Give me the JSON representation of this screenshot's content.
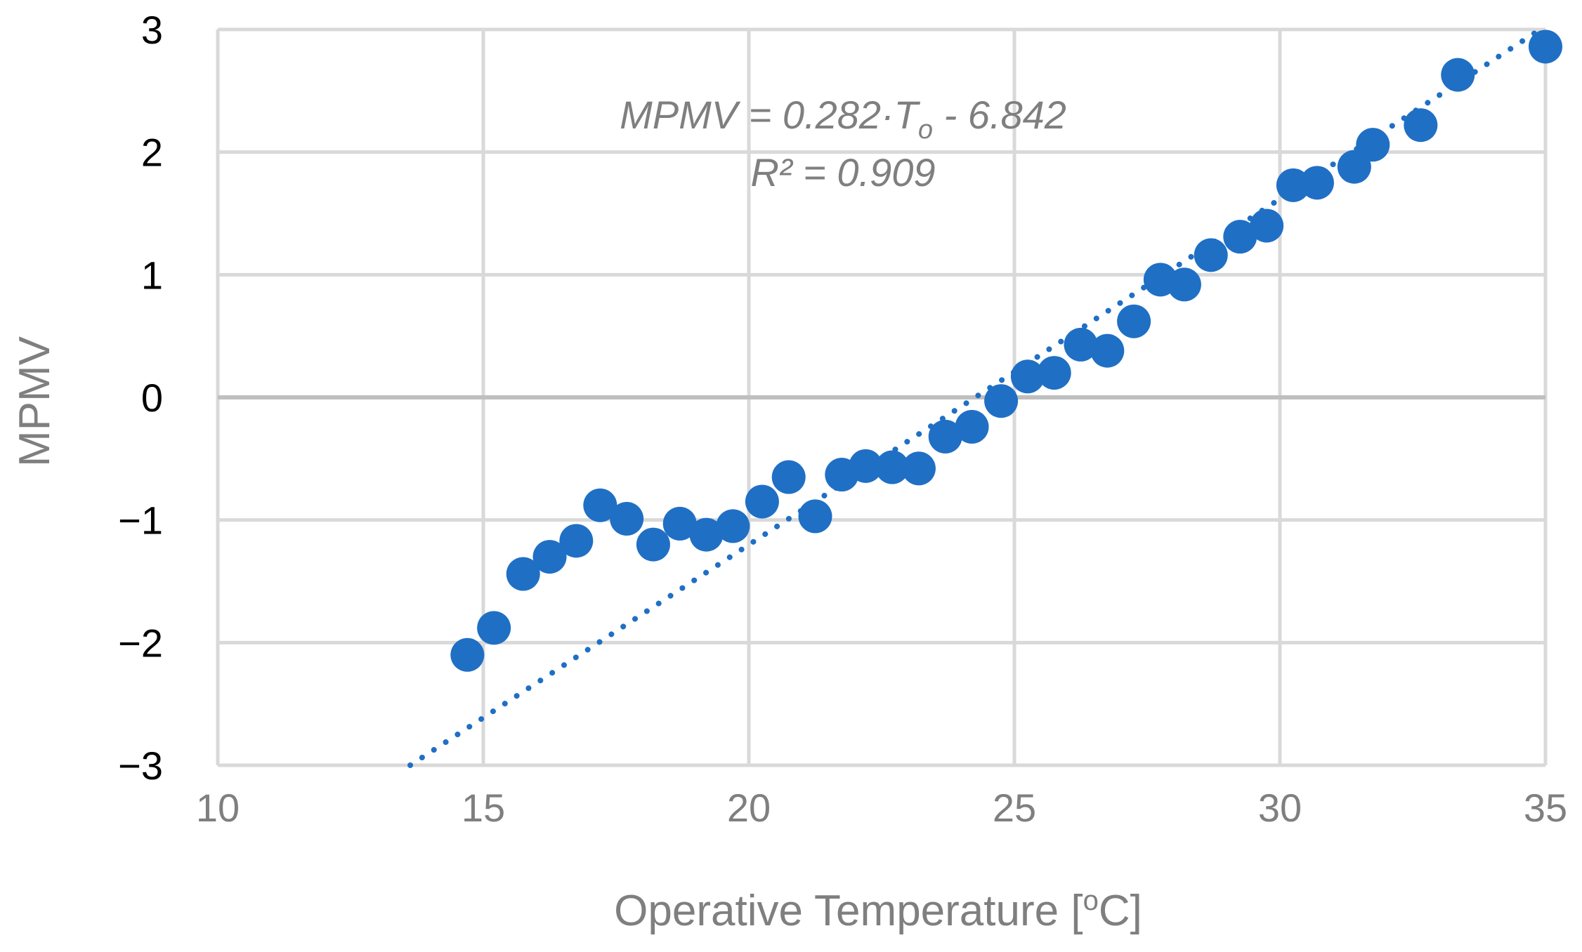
{
  "chart_data": {
    "type": "scatter",
    "xlabel": "Operative Temperature [°C]",
    "xlabel_main": "Operative Temperature [",
    "xlabel_degree": "o",
    "xlabel_unit": "C]",
    "ylabel": "MPMV",
    "xlim": [
      10,
      35
    ],
    "ylim": [
      -3,
      3
    ],
    "x_ticks": [
      10,
      15,
      20,
      25,
      30,
      35
    ],
    "y_ticks": [
      3,
      2,
      1,
      0,
      -1,
      -2,
      -3
    ],
    "x_tick_labels": [
      "10",
      "15",
      "20",
      "25",
      "30",
      "35"
    ],
    "y_tick_labels": [
      "3",
      "2",
      "1",
      "0",
      "−1",
      "−2",
      "−3"
    ],
    "grid": true,
    "series": [
      {
        "name": "MPMV",
        "color": "#1f6fc5",
        "points": [
          [
            14.7,
            -2.1
          ],
          [
            15.2,
            -1.88
          ],
          [
            15.75,
            -1.44
          ],
          [
            16.25,
            -1.3
          ],
          [
            16.75,
            -1.17
          ],
          [
            17.2,
            -0.88
          ],
          [
            17.7,
            -0.99
          ],
          [
            18.2,
            -1.2
          ],
          [
            18.7,
            -1.03
          ],
          [
            19.2,
            -1.12
          ],
          [
            19.7,
            -1.05
          ],
          [
            20.25,
            -0.85
          ],
          [
            20.75,
            -0.65
          ],
          [
            21.25,
            -0.97
          ],
          [
            21.75,
            -0.63
          ],
          [
            22.2,
            -0.56
          ],
          [
            22.7,
            -0.57
          ],
          [
            23.2,
            -0.58
          ],
          [
            23.7,
            -0.32
          ],
          [
            24.2,
            -0.24
          ],
          [
            24.75,
            -0.03
          ],
          [
            25.25,
            0.17
          ],
          [
            25.75,
            0.2
          ],
          [
            26.25,
            0.43
          ],
          [
            26.75,
            0.38
          ],
          [
            27.25,
            0.62
          ],
          [
            27.75,
            0.96
          ],
          [
            28.2,
            0.92
          ],
          [
            28.7,
            1.16
          ],
          [
            29.25,
            1.31
          ],
          [
            29.75,
            1.4
          ],
          [
            30.25,
            1.73
          ],
          [
            30.7,
            1.75
          ],
          [
            31.4,
            1.88
          ],
          [
            31.75,
            2.06
          ],
          [
            32.65,
            2.22
          ],
          [
            33.35,
            2.63
          ],
          [
            35.0,
            2.86
          ]
        ]
      }
    ],
    "trendline": {
      "type": "linear",
      "slope": 0.282,
      "intercept": -6.842,
      "style": "dotted",
      "color": "#1f6fc5"
    },
    "annotation": {
      "equation_prefix": "MPMV = 0.282·T",
      "equation_subscript": "o",
      "equation_suffix": " - 6.842",
      "r_squared": "R² = 0.909"
    }
  }
}
